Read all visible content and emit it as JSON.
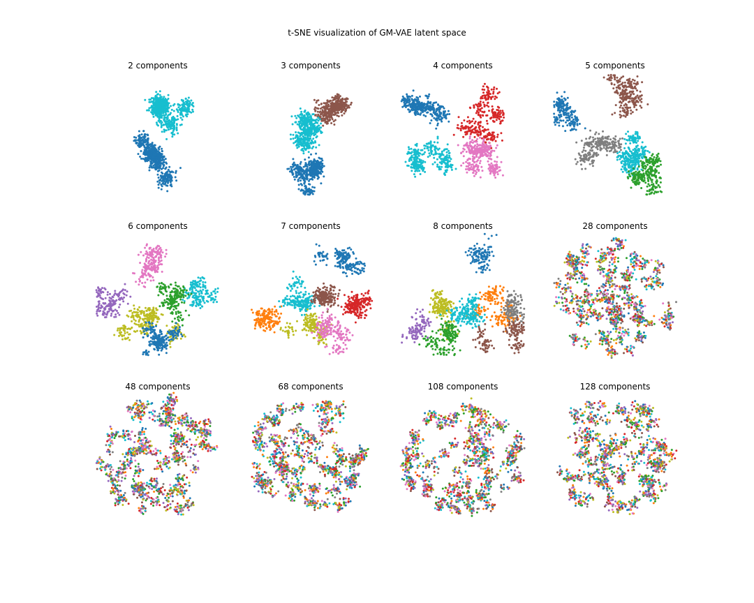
{
  "figure": {
    "title": "t-SNE visualization of GM-VAE latent space"
  },
  "palette": [
    "#1f77b4",
    "#ff7f0e",
    "#2ca02c",
    "#d62728",
    "#9467bd",
    "#8c564b",
    "#e377c2",
    "#7f7f7f",
    "#bcbd22",
    "#17becf"
  ],
  "chart_data": [
    {
      "type": "scatter",
      "title": "2 components",
      "components": 2,
      "axes": "off",
      "clusters": [
        {
          "color": "#17becf",
          "region": "upper and middle",
          "points": 620
        },
        {
          "color": "#1f77b4",
          "region": "lower half",
          "points": 620
        }
      ]
    },
    {
      "type": "scatter",
      "title": "3 components",
      "components": 3,
      "axes": "off",
      "clusters": [
        {
          "color": "#8c564b",
          "region": "upper right",
          "points": 420
        },
        {
          "color": "#17becf",
          "region": "center left",
          "points": 460
        },
        {
          "color": "#1f77b4",
          "region": "bottom",
          "points": 420
        }
      ]
    },
    {
      "type": "scatter",
      "title": "4 components",
      "components": 4,
      "axes": "off",
      "clusters": [
        {
          "color": "#1f77b4",
          "region": "upper left",
          "points": 330
        },
        {
          "color": "#d62728",
          "region": "center right",
          "points": 300
        },
        {
          "color": "#17becf",
          "region": "left center",
          "points": 300
        },
        {
          "color": "#e377c2",
          "region": "lower right",
          "points": 330
        }
      ]
    },
    {
      "type": "scatter",
      "title": "5 components",
      "components": 5,
      "axes": "off",
      "clusters": [
        {
          "color": "#1f77b4",
          "region": "left",
          "points": 180
        },
        {
          "color": "#8c564b",
          "region": "top center",
          "points": 240
        },
        {
          "color": "#7f7f7f",
          "region": "center left",
          "points": 240
        },
        {
          "color": "#17becf",
          "region": "center",
          "points": 300
        },
        {
          "color": "#2ca02c",
          "region": "lower right",
          "points": 260
        }
      ]
    },
    {
      "type": "scatter",
      "title": "6 components",
      "components": 6,
      "axes": "off",
      "clusters": [
        {
          "color": "#e377c2",
          "region": "top",
          "points": 200
        },
        {
          "color": "#17becf",
          "region": "right",
          "points": 160
        },
        {
          "color": "#9467bd",
          "region": "left",
          "points": 160
        },
        {
          "color": "#bcbd22",
          "region": "center",
          "points": 280
        },
        {
          "color": "#2ca02c",
          "region": "center right",
          "points": 200
        },
        {
          "color": "#1f77b4",
          "region": "bottom",
          "points": 260
        }
      ]
    },
    {
      "type": "scatter",
      "title": "7 components",
      "components": 7,
      "axes": "off",
      "clusters": [
        {
          "color": "#1f77b4",
          "region": "top right",
          "points": 200
        },
        {
          "color": "#d62728",
          "region": "right",
          "points": 220
        },
        {
          "color": "#ff7f0e",
          "region": "left",
          "points": 160
        },
        {
          "color": "#17becf",
          "region": "center",
          "points": 200
        },
        {
          "color": "#8c564b",
          "region": "center",
          "points": 200
        },
        {
          "color": "#bcbd22",
          "region": "lower center",
          "points": 200
        },
        {
          "color": "#e377c2",
          "region": "bottom",
          "points": 180
        }
      ]
    },
    {
      "type": "scatter",
      "title": "8 components",
      "components": 8,
      "axes": "off",
      "clusters": [
        {
          "color": "#1f77b4",
          "region": "top",
          "points": 120
        },
        {
          "color": "#ff7f0e",
          "region": "center right",
          "points": 180
        },
        {
          "color": "#7f7f7f",
          "region": "right",
          "points": 120
        },
        {
          "color": "#bcbd22",
          "region": "center left",
          "points": 180
        },
        {
          "color": "#17becf",
          "region": "center",
          "points": 200
        },
        {
          "color": "#9467bd",
          "region": "left",
          "points": 100
        },
        {
          "color": "#8c564b",
          "region": "lower right",
          "points": 160
        },
        {
          "color": "#2ca02c",
          "region": "bottom",
          "points": 180
        }
      ]
    },
    {
      "type": "scatter",
      "title": "28 components",
      "components": 28,
      "axes": "off",
      "mixing": "high"
    },
    {
      "type": "scatter",
      "title": "48 components",
      "components": 48,
      "axes": "off",
      "mixing": "very high"
    },
    {
      "type": "scatter",
      "title": "68 components",
      "components": 68,
      "axes": "off",
      "mixing": "very high"
    },
    {
      "type": "scatter",
      "title": "108 components",
      "components": 108,
      "axes": "off",
      "mixing": "very high"
    },
    {
      "type": "scatter",
      "title": "128 components",
      "components": 128,
      "axes": "off",
      "mixing": "very high"
    }
  ]
}
